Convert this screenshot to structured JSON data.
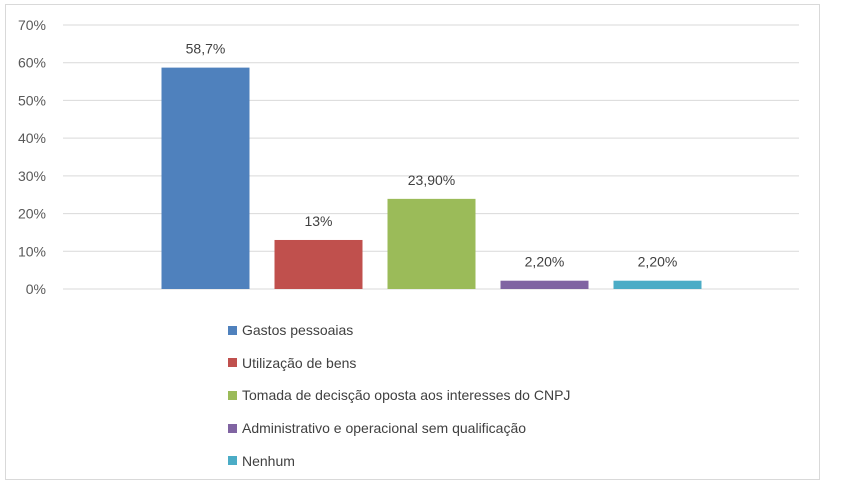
{
  "chart_data": {
    "type": "bar",
    "categories": [
      "Gastos pessoaias",
      "Utilização de bens",
      "Tomada de decisção oposta aos interesses do CNPJ",
      "Administrativo e operacional sem qualificação",
      "Nenhum"
    ],
    "values": [
      58.7,
      13,
      23.9,
      2.2,
      2.2
    ],
    "data_labels": [
      "58,7%",
      "13%",
      "23,90%",
      "2,20%",
      "2,20%"
    ],
    "colors": [
      "#4f81bd",
      "#c0504d",
      "#9bbb59",
      "#8064a2",
      "#4bacc6"
    ],
    "ylim": [
      0,
      70
    ],
    "yticks": [
      {
        "value": 0,
        "label": "0%"
      },
      {
        "value": 10,
        "label": "10%"
      },
      {
        "value": 20,
        "label": "20%"
      },
      {
        "value": 30,
        "label": "30%"
      },
      {
        "value": 40,
        "label": "40%"
      },
      {
        "value": 50,
        "label": "50%"
      },
      {
        "value": 60,
        "label": "60%"
      },
      {
        "value": 70,
        "label": "70%"
      }
    ],
    "grid": true,
    "legend_position": "bottom",
    "title": "",
    "xlabel": "",
    "ylabel": ""
  }
}
